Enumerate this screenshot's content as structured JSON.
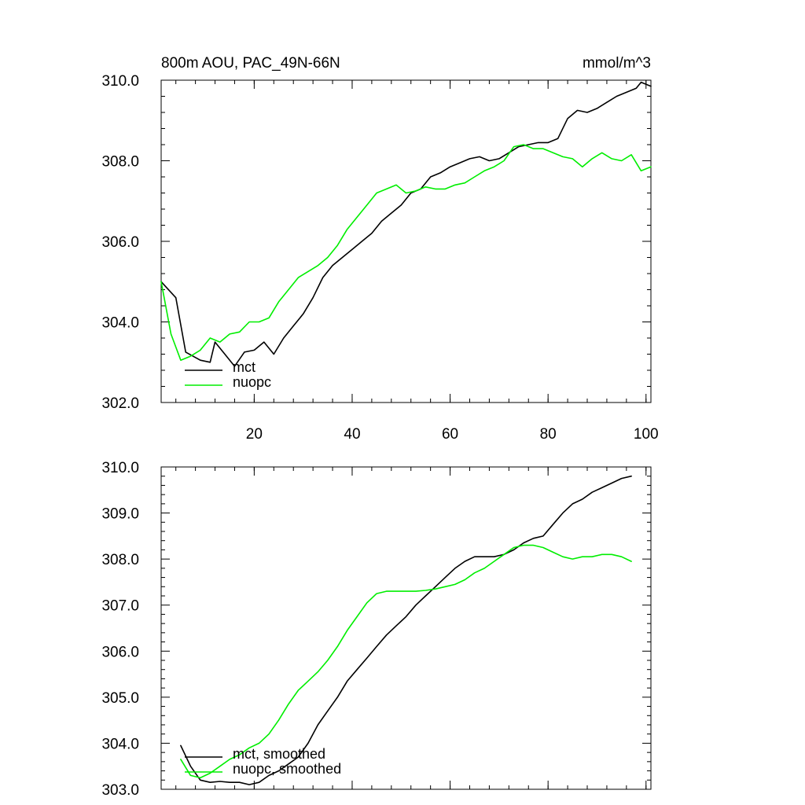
{
  "figure": {
    "title_left": "800m AOU, PAC_49N-66N",
    "title_right": "mmol/m^3"
  },
  "chart_data": [
    {
      "type": "line",
      "title": "800m AOU, PAC_49N-66N",
      "units": "mmol/m^3",
      "xlim": [
        1,
        101
      ],
      "ylim": [
        302.0,
        310.0
      ],
      "x_ticks": [
        20,
        40,
        60,
        80,
        100
      ],
      "y_ticks": [
        302.0,
        304.0,
        306.0,
        308.0,
        310.0
      ],
      "y_tick_labels": [
        "302.0",
        "304.0",
        "306.0",
        "308.0",
        "310.0"
      ],
      "grid": false,
      "legend_position": "bottom-left",
      "series": [
        {
          "name": "mct",
          "color": "#000000",
          "x": [
            1,
            4,
            6,
            9,
            11,
            12,
            14,
            16,
            18,
            20,
            22,
            24,
            26,
            28,
            30,
            32,
            34,
            36,
            38,
            40,
            42,
            44,
            46,
            48,
            50,
            52,
            54,
            56,
            58,
            60,
            62,
            64,
            66,
            68,
            70,
            72,
            74,
            76,
            78,
            80,
            82,
            84,
            86,
            88,
            90,
            92,
            94,
            96,
            98,
            99,
            101
          ],
          "values": [
            305.0,
            304.6,
            303.25,
            303.05,
            303.0,
            303.5,
            303.2,
            302.9,
            303.25,
            303.3,
            303.5,
            303.2,
            303.6,
            303.9,
            304.2,
            304.6,
            305.1,
            305.4,
            305.6,
            305.8,
            306.0,
            306.2,
            306.5,
            306.7,
            306.9,
            307.2,
            307.3,
            307.6,
            307.7,
            307.85,
            307.95,
            308.05,
            308.1,
            308.0,
            308.05,
            308.2,
            308.35,
            308.4,
            308.45,
            308.45,
            308.55,
            309.05,
            309.25,
            309.2,
            309.3,
            309.45,
            309.6,
            309.7,
            309.8,
            309.95,
            309.85
          ]
        },
        {
          "name": "nuopc",
          "color": "#00ee00",
          "x": [
            1,
            3,
            5,
            7,
            9,
            11,
            13,
            15,
            17,
            19,
            21,
            23,
            25,
            27,
            29,
            31,
            33,
            35,
            37,
            39,
            41,
            43,
            45,
            47,
            49,
            51,
            53,
            55,
            57,
            59,
            61,
            63,
            65,
            67,
            69,
            71,
            73,
            75,
            77,
            79,
            81,
            83,
            85,
            87,
            89,
            91,
            93,
            95,
            97,
            99,
            101
          ],
          "values": [
            305.0,
            303.7,
            303.05,
            303.15,
            303.3,
            303.6,
            303.5,
            303.7,
            303.75,
            304.0,
            304.0,
            304.1,
            304.5,
            304.8,
            305.1,
            305.25,
            305.4,
            305.6,
            305.9,
            306.3,
            306.6,
            306.9,
            307.2,
            307.3,
            307.4,
            307.2,
            307.25,
            307.35,
            307.3,
            307.3,
            307.4,
            307.45,
            307.6,
            307.75,
            307.85,
            308.0,
            308.35,
            308.4,
            308.3,
            308.3,
            308.2,
            308.1,
            308.05,
            307.85,
            308.05,
            308.2,
            308.05,
            308.0,
            308.15,
            307.75,
            307.85
          ]
        }
      ]
    },
    {
      "type": "line",
      "title": "",
      "xlim": [
        1,
        101
      ],
      "ylim": [
        303.0,
        310.0
      ],
      "x_ticks": [
        20,
        40,
        60,
        80,
        100
      ],
      "y_ticks": [
        303.0,
        304.0,
        305.0,
        306.0,
        307.0,
        308.0,
        309.0,
        310.0
      ],
      "y_tick_labels": [
        "303.0",
        "304.0",
        "305.0",
        "306.0",
        "307.0",
        "308.0",
        "309.0",
        "310.0"
      ],
      "grid": false,
      "legend_position": "bottom-left",
      "series": [
        {
          "name": "mct, smoothed",
          "color": "#000000",
          "x": [
            5,
            7,
            9,
            11,
            13,
            15,
            17,
            19,
            21,
            23,
            25,
            27,
            29,
            31,
            33,
            35,
            37,
            39,
            41,
            43,
            45,
            47,
            49,
            51,
            53,
            55,
            57,
            59,
            61,
            63,
            65,
            67,
            69,
            71,
            73,
            75,
            77,
            79,
            81,
            83,
            85,
            87,
            89,
            91,
            93,
            95,
            97
          ],
          "values": [
            303.95,
            303.5,
            303.2,
            303.15,
            303.17,
            303.15,
            303.15,
            303.1,
            303.15,
            303.3,
            303.4,
            303.55,
            303.7,
            304.0,
            304.4,
            304.7,
            305.0,
            305.35,
            305.6,
            305.85,
            306.1,
            306.35,
            306.55,
            306.75,
            307.0,
            307.2,
            307.4,
            307.6,
            307.8,
            307.95,
            308.05,
            308.05,
            308.05,
            308.1,
            308.2,
            308.35,
            308.45,
            308.5,
            308.75,
            309.0,
            309.2,
            309.3,
            309.45,
            309.55,
            309.65,
            309.75,
            309.8
          ]
        },
        {
          "name": "nuopc, smoothed",
          "color": "#00ee00",
          "x": [
            5,
            7,
            9,
            11,
            13,
            15,
            17,
            19,
            21,
            23,
            25,
            27,
            29,
            31,
            33,
            35,
            37,
            39,
            41,
            43,
            45,
            47,
            49,
            51,
            53,
            55,
            57,
            59,
            61,
            63,
            65,
            67,
            69,
            71,
            73,
            75,
            77,
            79,
            81,
            83,
            85,
            87,
            89,
            91,
            93,
            95,
            97
          ],
          "values": [
            303.65,
            303.3,
            303.25,
            303.35,
            303.5,
            303.65,
            303.75,
            303.9,
            304.0,
            304.2,
            304.5,
            304.85,
            305.15,
            305.35,
            305.55,
            305.8,
            306.1,
            306.45,
            306.75,
            307.05,
            307.25,
            307.3,
            307.3,
            307.3,
            307.3,
            307.32,
            307.35,
            307.4,
            307.45,
            307.55,
            307.7,
            307.8,
            307.95,
            308.1,
            308.25,
            308.3,
            308.3,
            308.25,
            308.15,
            308.05,
            308.0,
            308.05,
            308.05,
            308.1,
            308.1,
            308.05,
            307.95
          ]
        }
      ]
    }
  ]
}
